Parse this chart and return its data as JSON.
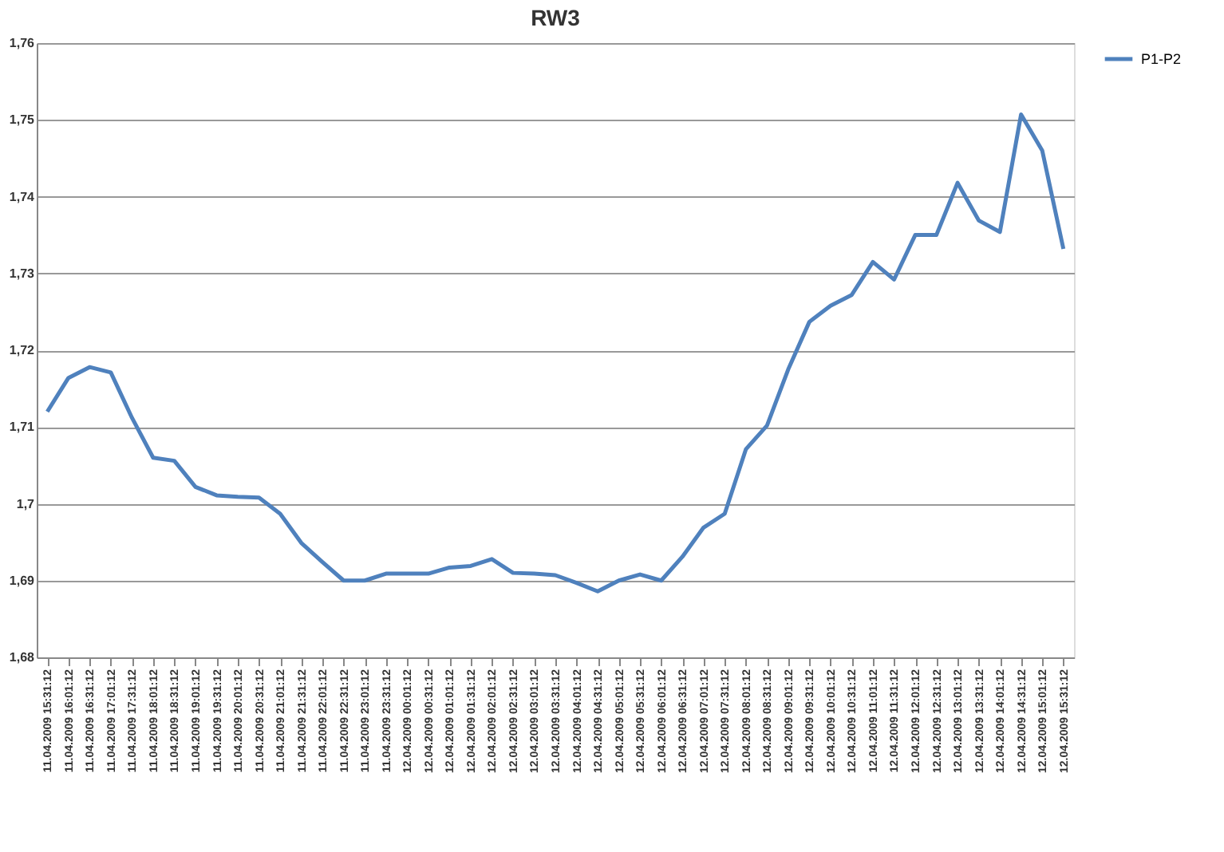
{
  "chart_data": {
    "type": "line",
    "title": "RW3",
    "categories": [
      "11.04.2009 15:31:12",
      "11.04.2009 16:01:12",
      "11.04.2009 16:31:12",
      "11.04.2009 17:01:12",
      "11.04.2009 17:31:12",
      "11.04.2009 18:01:12",
      "11.04.2009 18:31:12",
      "11.04.2009 19:01:12",
      "11.04.2009 19:31:12",
      "11.04.2009 20:01:12",
      "11.04.2009 20:31:12",
      "11.04.2009 21:01:12",
      "11.04.2009 21:31:12",
      "11.04.2009 22:01:12",
      "11.04.2009 22:31:12",
      "11.04.2009 23:01:12",
      "11.04.2009 23:31:12",
      "12.04.2009 00:01:12",
      "12.04.2009 00:31:12",
      "12.04.2009 01:01:12",
      "12.04.2009 01:31:12",
      "12.04.2009 02:01:12",
      "12.04.2009 02:31:12",
      "12.04.2009 03:01:12",
      "12.04.2009 03:31:12",
      "12.04.2009 04:01:12",
      "12.04.2009 04:31:12",
      "12.04.2009 05:01:12",
      "12.04.2009 05:31:12",
      "12.04.2009 06:01:12",
      "12.04.2009 06:31:12",
      "12.04.2009 07:01:12",
      "12.04.2009 07:31:12",
      "12.04.2009 08:01:12",
      "12.04.2009 08:31:12",
      "12.04.2009 09:01:12",
      "12.04.2009 09:31:12",
      "12.04.2009 10:01:12",
      "12.04.2009 10:31:12",
      "12.04.2009 11:01:12",
      "12.04.2009 11:31:12",
      "12.04.2009 12:01:12",
      "12.04.2009 12:31:12",
      "12.04.2009 13:01:12",
      "12.04.2009 13:31:12",
      "12.04.2009 14:01:12",
      "12.04.2009 14:31:12",
      "12.04.2009 15:01:12",
      "12.04.2009 15:31:12"
    ],
    "series": [
      {
        "name": "P1-P2",
        "color": "#4f81bd",
        "values": [
          1.712,
          1.7164,
          1.7178,
          1.7171,
          1.7112,
          1.706,
          1.7056,
          1.7022,
          1.7011,
          1.7009,
          1.7008,
          1.6987,
          1.6949,
          1.6924,
          1.69,
          1.69,
          1.6909,
          1.6909,
          1.6909,
          1.6917,
          1.6919,
          1.6928,
          1.691,
          1.6909,
          1.6907,
          1.6897,
          1.6886,
          1.69,
          1.6908,
          1.69,
          1.6931,
          1.6969,
          1.6987,
          1.7071,
          1.7102,
          1.7175,
          1.7237,
          1.7258,
          1.7272,
          1.7315,
          1.7292,
          1.735,
          1.735,
          1.7418,
          1.7369,
          1.7354,
          1.7507,
          1.746,
          1.7332
        ]
      }
    ],
    "ylim": [
      1.68,
      1.76
    ],
    "yticks": [
      {
        "value": 1.68,
        "label": "1,68"
      },
      {
        "value": 1.69,
        "label": "1,69"
      },
      {
        "value": 1.7,
        "label": "1,7"
      },
      {
        "value": 1.71,
        "label": "1,71"
      },
      {
        "value": 1.72,
        "label": "1,72"
      },
      {
        "value": 1.73,
        "label": "1,73"
      },
      {
        "value": 1.74,
        "label": "1,74"
      },
      {
        "value": 1.75,
        "label": "1,75"
      },
      {
        "value": 1.76,
        "label": "1,76"
      }
    ],
    "grid": "y",
    "legend": "right",
    "marker": "none",
    "line_style": "solid"
  }
}
